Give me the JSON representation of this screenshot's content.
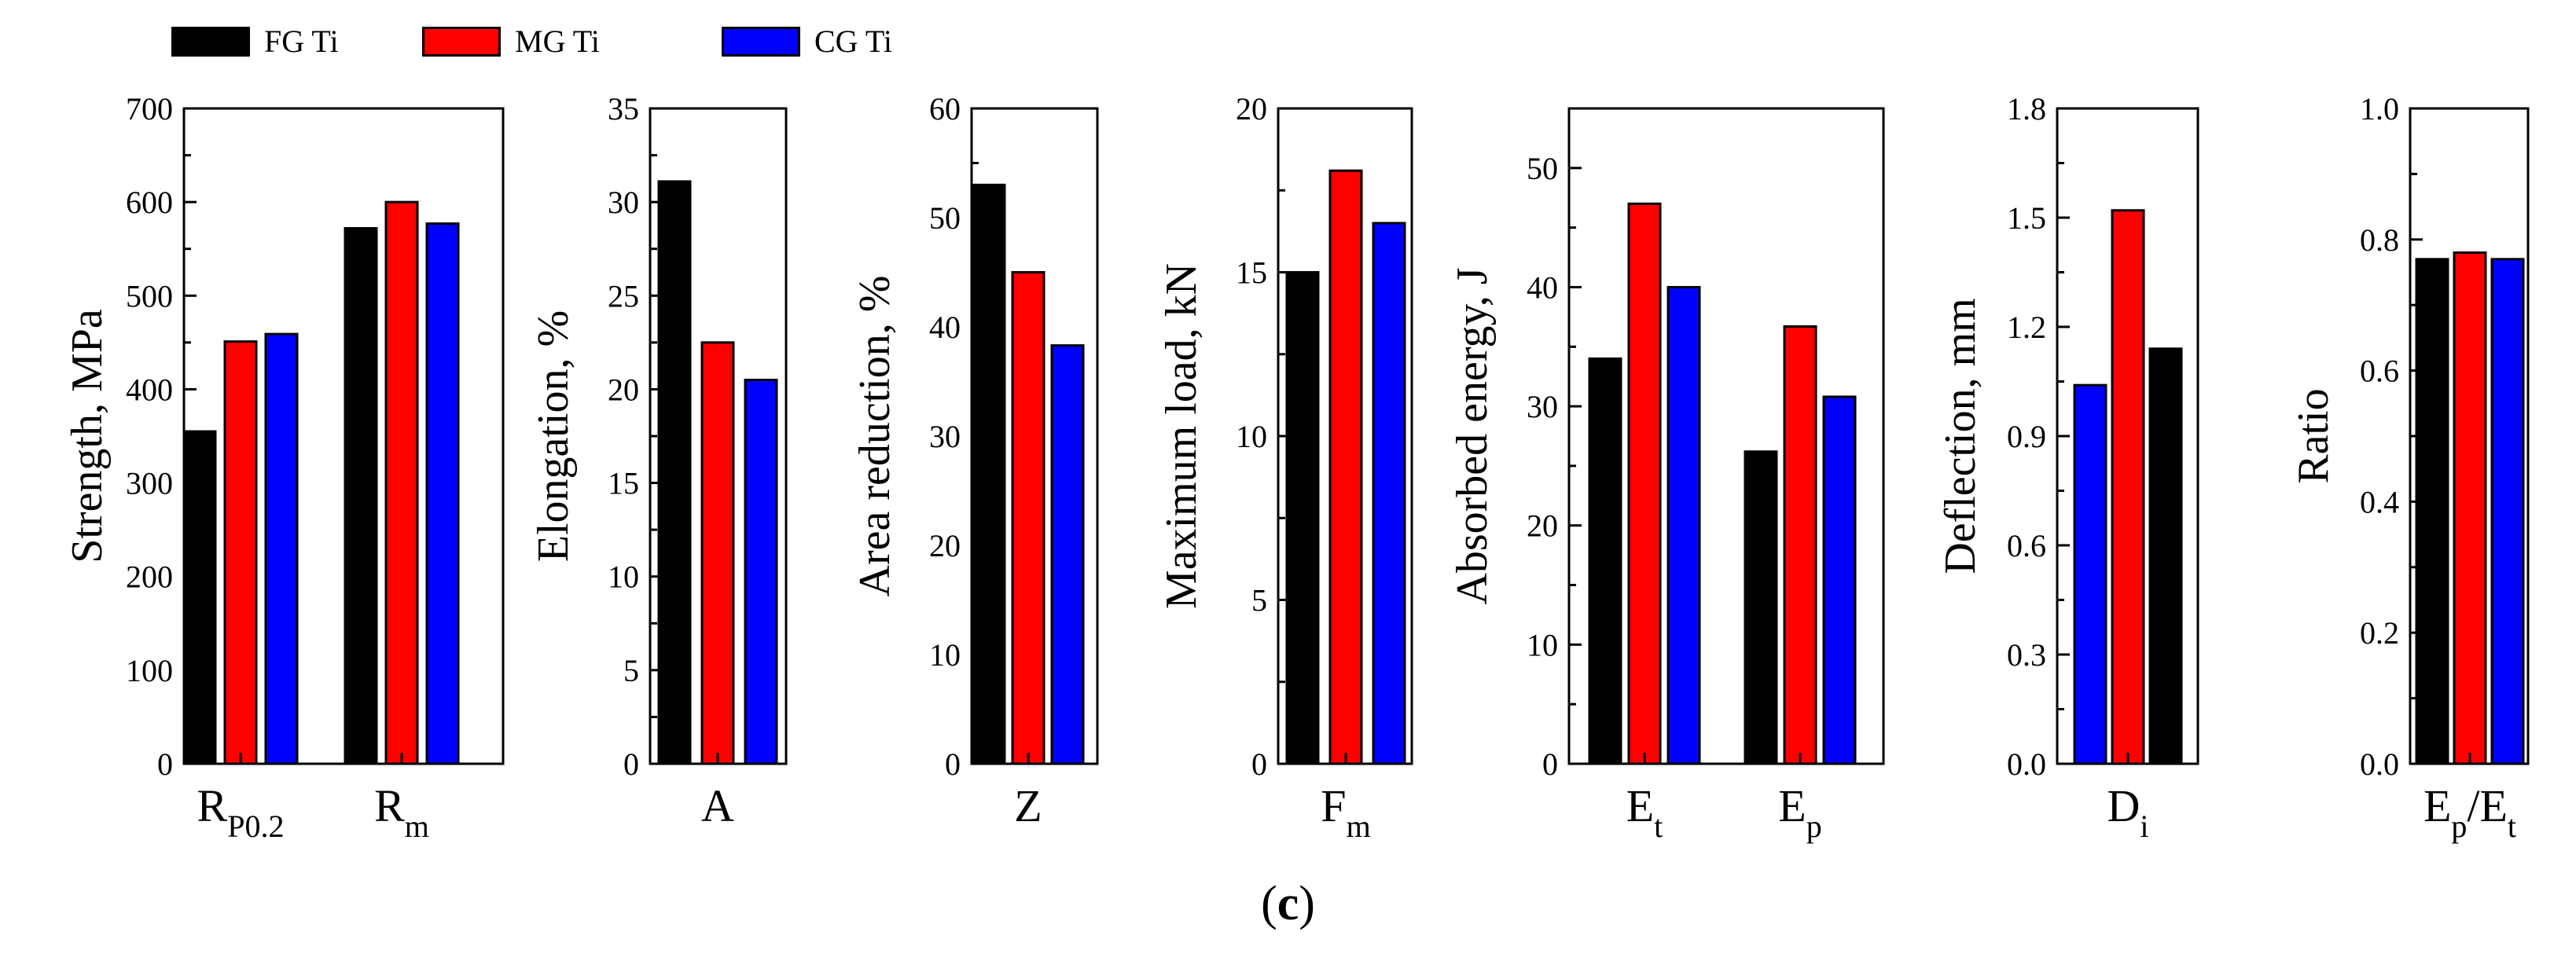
{
  "legend": [
    {
      "name": "FG Ti",
      "color": "#000000"
    },
    {
      "name": "MG Ti",
      "color": "#ff0000"
    },
    {
      "name": "CG Ti",
      "color": "#0000ff"
    }
  ],
  "panel_label": {
    "open": "(",
    "letter": "c",
    "close": ")"
  },
  "chart_data": [
    {
      "type": "bar",
      "ylabel": "Strength, MPa",
      "ylim": [
        0,
        700
      ],
      "yticks": [
        0,
        100,
        200,
        300,
        400,
        500,
        600,
        700
      ],
      "categories": [
        {
          "base": "R",
          "sub": "P0.2"
        },
        {
          "base": "R",
          "sub": "m"
        }
      ],
      "series": [
        {
          "name": "FG Ti",
          "color": "#000000",
          "values": [
            355,
            572
          ]
        },
        {
          "name": "MG Ti",
          "color": "#ff0000",
          "values": [
            451,
            600
          ]
        },
        {
          "name": "CG Ti",
          "color": "#0000ff",
          "values": [
            459,
            577
          ]
        }
      ]
    },
    {
      "type": "bar",
      "ylabel": "Elongation, %",
      "ylim": [
        0,
        35
      ],
      "yticks": [
        0,
        5,
        10,
        15,
        20,
        25,
        30,
        35
      ],
      "categories": [
        {
          "base": "A",
          "sub": ""
        }
      ],
      "series": [
        {
          "name": "FG Ti",
          "color": "#000000",
          "values": [
            31.1
          ]
        },
        {
          "name": "MG Ti",
          "color": "#ff0000",
          "values": [
            22.5
          ]
        },
        {
          "name": "CG Ti",
          "color": "#0000ff",
          "values": [
            20.5
          ]
        }
      ]
    },
    {
      "type": "bar",
      "ylabel": "Area reduction, %",
      "ylim": [
        0,
        60
      ],
      "yticks": [
        0,
        10,
        20,
        30,
        40,
        50,
        60
      ],
      "categories": [
        {
          "base": "Z",
          "sub": ""
        }
      ],
      "series": [
        {
          "name": "FG Ti",
          "color": "#000000",
          "values": [
            53
          ]
        },
        {
          "name": "MG Ti",
          "color": "#ff0000",
          "values": [
            45
          ]
        },
        {
          "name": "CG Ti",
          "color": "#0000ff",
          "values": [
            38.3
          ]
        }
      ]
    },
    {
      "type": "bar",
      "ylabel": "Maximum load, kN",
      "ylim": [
        0,
        20
      ],
      "yticks": [
        0,
        5,
        10,
        15,
        20
      ],
      "categories": [
        {
          "base": "F",
          "sub": "m"
        }
      ],
      "series": [
        {
          "name": "FG Ti",
          "color": "#000000",
          "values": [
            15
          ]
        },
        {
          "name": "MG Ti",
          "color": "#ff0000",
          "values": [
            18.1
          ]
        },
        {
          "name": "CG Ti",
          "color": "#0000ff",
          "values": [
            16.5
          ]
        }
      ]
    },
    {
      "type": "bar",
      "ylabel": "Absorbed energy, J",
      "ylim": [
        0,
        55
      ],
      "yticks": [
        0,
        10,
        20,
        30,
        40,
        50
      ],
      "categories": [
        {
          "base": "E",
          "sub": "t"
        },
        {
          "base": "E",
          "sub": "p"
        }
      ],
      "series": [
        {
          "name": "FG Ti",
          "color": "#000000",
          "values": [
            34,
            26.2
          ]
        },
        {
          "name": "MG Ti",
          "color": "#ff0000",
          "values": [
            47,
            36.7
          ]
        },
        {
          "name": "CG Ti",
          "color": "#0000ff",
          "values": [
            40,
            30.8
          ]
        }
      ]
    },
    {
      "type": "bar",
      "ylabel": "Deflection, mm",
      "ylim": [
        0,
        1.8
      ],
      "yticks": [
        "0.0",
        "0.3",
        "0.6",
        "0.9",
        "1.2",
        "1.5",
        "1.8"
      ],
      "categories": [
        {
          "base": "D",
          "sub": "i"
        }
      ],
      "series": [
        {
          "name": "CG Ti",
          "color": "#0000ff",
          "values": [
            1.04
          ]
        },
        {
          "name": "MG Ti",
          "color": "#ff0000",
          "values": [
            1.52
          ]
        },
        {
          "name": "FG Ti",
          "color": "#000000",
          "values": [
            1.14
          ]
        }
      ]
    },
    {
      "type": "bar",
      "ylabel": "Ratio",
      "ylim": [
        0,
        1
      ],
      "yticks": [
        "0.0",
        "0.2",
        "0.4",
        "0.6",
        "0.8",
        "1.0"
      ],
      "categories": [
        {
          "base": "E",
          "sub": "p",
          "mid": "/E",
          "sub2": "t"
        }
      ],
      "series": [
        {
          "name": "FG Ti",
          "color": "#000000",
          "values": [
            0.77
          ]
        },
        {
          "name": "MG Ti",
          "color": "#ff0000",
          "values": [
            0.78
          ]
        },
        {
          "name": "CG Ti",
          "color": "#0000ff",
          "values": [
            0.77
          ]
        }
      ]
    }
  ]
}
